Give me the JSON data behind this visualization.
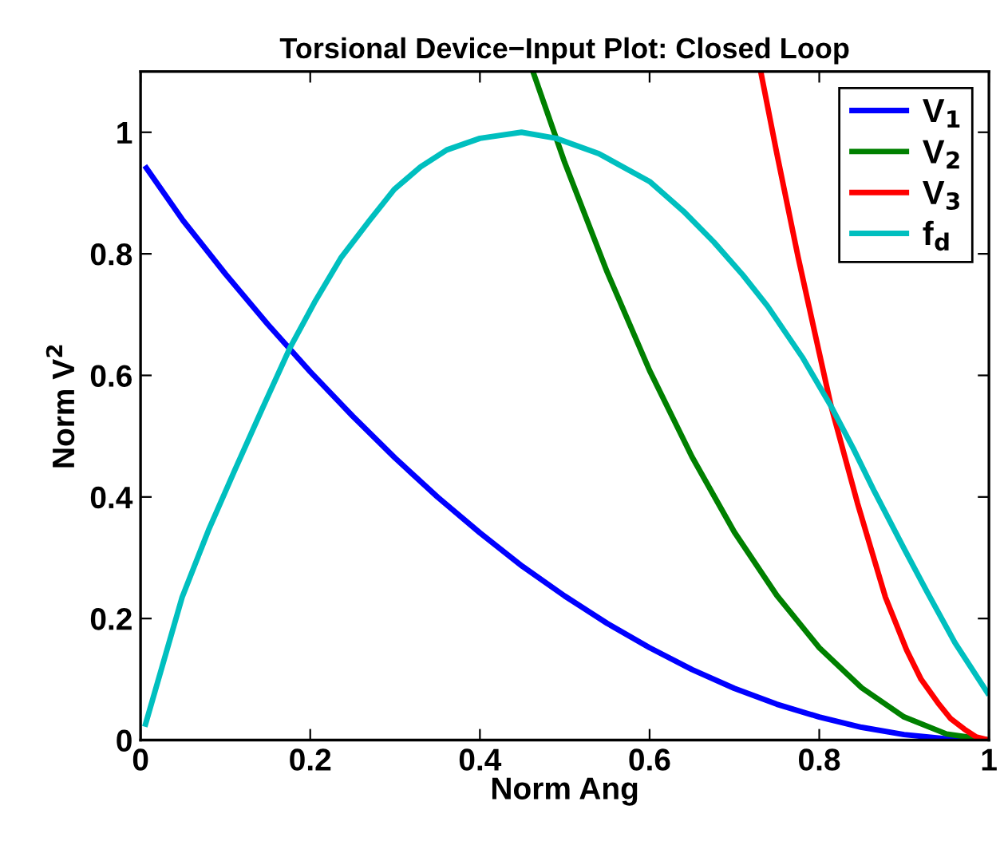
{
  "chart_data": {
    "type": "line",
    "title": "Torsional Device−Input Plot: Closed Loop",
    "xlabel": "Norm Ang",
    "ylabel": "Norm V$^{2}$",
    "xlim": [
      0,
      1
    ],
    "ylim": [
      0,
      1.1
    ],
    "xticks": [
      0,
      0.2,
      0.4,
      0.6,
      0.8,
      1
    ],
    "yticks": [
      0,
      0.2,
      0.4,
      0.6,
      0.8,
      1
    ],
    "legend": "top right",
    "grid": false,
    "marker": "none",
    "line_style": "solid",
    "series": [
      {
        "name": "V$_{1}$",
        "color": "#0000ff",
        "x": [
          0.005,
          0.05,
          0.1,
          0.15,
          0.2,
          0.25,
          0.3,
          0.35,
          0.4,
          0.45,
          0.5,
          0.55,
          0.6,
          0.65,
          0.7,
          0.75,
          0.8,
          0.85,
          0.9,
          0.95,
          1
        ],
        "values": [
          0.945,
          0.855,
          0.767,
          0.684,
          0.606,
          0.533,
          0.464,
          0.4,
          0.341,
          0.286,
          0.237,
          0.192,
          0.152,
          0.116,
          0.085,
          0.059,
          0.038,
          0.021,
          0.009,
          0.002,
          0
        ]
      },
      {
        "name": "V$_{2}$",
        "color": "#008000",
        "x": [
          0.4625,
          0.5,
          0.55,
          0.6,
          0.65,
          0.7,
          0.75,
          0.8,
          0.85,
          0.9,
          0.95,
          1
        ],
        "values": [
          1.1,
          0.95,
          0.77,
          0.608,
          0.466,
          0.342,
          0.238,
          0.152,
          0.086,
          0.038,
          0.01,
          0
        ]
      },
      {
        "name": "V$_{3}$",
        "color": "#ff0000",
        "x": [
          0.731,
          0.75,
          0.775,
          0.8,
          0.814,
          0.845,
          0.878,
          0.903,
          0.92,
          0.94,
          0.955,
          0.971,
          0.985,
          1
        ],
        "values": [
          1.1,
          0.965,
          0.795,
          0.637,
          0.549,
          0.39,
          0.235,
          0.148,
          0.1,
          0.061,
          0.035,
          0.018,
          0.005,
          0
        ]
      },
      {
        "name": "f$_{d}$",
        "color": "#00bfbf",
        "x": [
          0.005,
          0.049,
          0.08,
          0.111,
          0.145,
          0.176,
          0.205,
          0.236,
          0.27,
          0.299,
          0.33,
          0.361,
          0.4,
          0.449,
          0.49,
          0.54,
          0.6,
          0.64,
          0.676,
          0.71,
          0.739,
          0.78,
          0.814,
          0.84,
          0.865,
          0.9,
          0.927,
          0.96,
          1
        ],
        "values": [
          0.022,
          0.235,
          0.345,
          0.444,
          0.55,
          0.645,
          0.72,
          0.793,
          0.855,
          0.906,
          0.943,
          0.971,
          0.99,
          1.0,
          0.99,
          0.965,
          0.919,
          0.87,
          0.819,
          0.765,
          0.714,
          0.63,
          0.549,
          0.48,
          0.409,
          0.315,
          0.244,
          0.16,
          0.074
        ]
      }
    ]
  }
}
